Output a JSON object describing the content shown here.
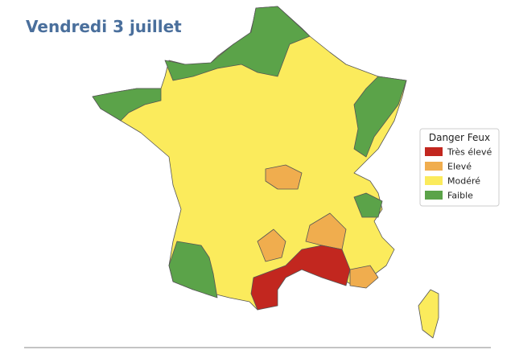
{
  "title": "Vendredi 3 juillet",
  "legend": {
    "title": "Danger Feux",
    "items": [
      {
        "label": "Très élevé",
        "color": "#c2271f"
      },
      {
        "label": "Elevé",
        "color": "#f0ad4e"
      },
      {
        "label": "Modéré",
        "color": "#fbeb5c"
      },
      {
        "label": "Faible",
        "color": "#5ba349"
      }
    ]
  }
}
